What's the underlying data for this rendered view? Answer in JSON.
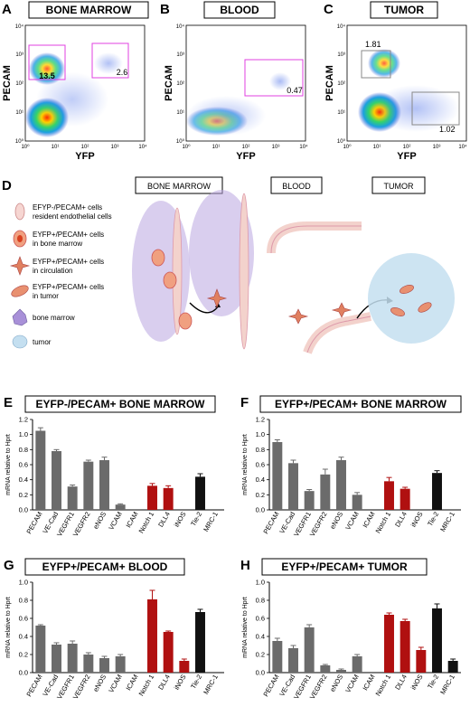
{
  "flow": [
    {
      "letter": "A",
      "title": "BONE MARROW",
      "ylabel": "PECAM",
      "xlabel": "YFP",
      "ticks": [
        "10⁰",
        "10¹",
        "10²",
        "10³",
        "10⁴"
      ],
      "gates": [
        {
          "label": "13.5",
          "color": "#e040e0"
        },
        {
          "label": "2.6",
          "color": "#e040e0"
        }
      ]
    },
    {
      "letter": "B",
      "title": "BLOOD",
      "ylabel": "PECAM",
      "xlabel": "YFP",
      "ticks": [
        "10⁰",
        "10¹",
        "10²",
        "10³",
        "10⁴"
      ],
      "gates": [
        {
          "label": "0.47",
          "color": "#e040e0"
        }
      ]
    },
    {
      "letter": "C",
      "title": "TUMOR",
      "ylabel": "PECAM",
      "xlabel": "YFP",
      "ticks": [
        "10⁰",
        "10¹",
        "10²",
        "10³",
        "10⁴"
      ],
      "gates": [
        {
          "label": "1.81",
          "color": "#888888"
        },
        {
          "label": "1.02",
          "color": "#888888"
        }
      ]
    }
  ],
  "scheme": {
    "letter": "D",
    "headers": [
      "BONE MARROW",
      "BLOOD",
      "TUMOR"
    ],
    "legend": [
      {
        "text1": "EFYP-/PECAM+ cells",
        "text2": "resident endothelial cells",
        "icon": "endothelial-cell-icon"
      },
      {
        "text1": "EYFP+/PECAM+ cells",
        "text2": "in bone marrow",
        "icon": "bm-yfp-cell-icon"
      },
      {
        "text1": "EYFP+/PECAM+ cells",
        "text2": "in circulation",
        "icon": "circulating-cell-icon"
      },
      {
        "text1": "EYFP+/PECAM+ cells",
        "text2": "in tumor",
        "icon": "tumor-yfp-cell-icon"
      },
      {
        "text1": "bone marrow",
        "text2": "",
        "icon": "bone-marrow-cell-icon"
      },
      {
        "text1": "tumor",
        "text2": "",
        "icon": "tumor-cell-icon"
      }
    ]
  },
  "colors": {
    "gray": "#6b6b6b",
    "red": "#b01010",
    "black": "#111111"
  },
  "chart_data": [
    {
      "panel": "E",
      "type": "bar",
      "title": "EYFP-/PECAM+ BONE MARROW",
      "ylabel": "mRNA relative to Hprt",
      "ylim": [
        0,
        1.2
      ],
      "yticks": [
        "0.0",
        "0.2",
        "0.4",
        "0.6",
        "0.8",
        "1.0",
        "1.2"
      ],
      "categories": [
        "PECAM",
        "VE-Cad",
        "VEGFR1",
        "VEGFR2",
        "eNOS",
        "VCAM",
        "ICAM",
        "Notch 1",
        "DLL4",
        "iNOS",
        "Tie-2",
        "MRC-1"
      ],
      "values": [
        1.05,
        0.78,
        0.31,
        0.64,
        0.66,
        0.07,
        0.01,
        0.32,
        0.29,
        0.0,
        0.44,
        0.0
      ],
      "errors": [
        0.04,
        0.02,
        0.02,
        0.02,
        0.04,
        0.01,
        0.0,
        0.03,
        0.03,
        0.0,
        0.04,
        0.0
      ],
      "bar_colors": [
        "gray",
        "gray",
        "gray",
        "gray",
        "gray",
        "gray",
        "gray",
        "red",
        "red",
        "red",
        "black",
        "black"
      ]
    },
    {
      "panel": "F",
      "type": "bar",
      "title": "EYFP+/PECAM+ BONE MARROW",
      "ylabel": "mRNA relative to Hprt",
      "ylim": [
        0,
        1.2
      ],
      "yticks": [
        "0.0",
        "0.2",
        "0.4",
        "0.6",
        "0.8",
        "1.0",
        "1.2"
      ],
      "categories": [
        "PECAM",
        "VE-Cad",
        "VEGFR1",
        "VEGFR2",
        "eNOS",
        "VCAM",
        "ICAM",
        "Notch 1",
        "DLL4",
        "iNOS",
        "Tie-2",
        "MRC-1"
      ],
      "values": [
        0.9,
        0.62,
        0.25,
        0.47,
        0.66,
        0.2,
        0.0,
        0.38,
        0.28,
        0.0,
        0.49,
        0.0
      ],
      "errors": [
        0.03,
        0.04,
        0.02,
        0.07,
        0.04,
        0.03,
        0.0,
        0.05,
        0.02,
        0.0,
        0.03,
        0.0
      ],
      "bar_colors": [
        "gray",
        "gray",
        "gray",
        "gray",
        "gray",
        "gray",
        "gray",
        "red",
        "red",
        "red",
        "black",
        "black"
      ]
    },
    {
      "panel": "G",
      "type": "bar",
      "title": "EYFP+/PECAM+ BLOOD",
      "ylabel": "mRNA relative to Hprt",
      "ylim": [
        0,
        1.0
      ],
      "yticks": [
        "0.0",
        "0.2",
        "0.4",
        "0.6",
        "0.8",
        "1.0"
      ],
      "categories": [
        "PECAM",
        "VE-Cad",
        "VEGFR1",
        "VEGFR2",
        "eNOS",
        "VCAM",
        "ICAM",
        "Notch 1",
        "DLL4",
        "iNOS",
        "Tie-2",
        "MRC-1"
      ],
      "values": [
        0.52,
        0.31,
        0.32,
        0.2,
        0.16,
        0.18,
        0.0,
        0.81,
        0.45,
        0.13,
        0.67,
        0.0
      ],
      "errors": [
        0.01,
        0.02,
        0.03,
        0.02,
        0.02,
        0.02,
        0.0,
        0.1,
        0.01,
        0.02,
        0.03,
        0.0
      ],
      "bar_colors": [
        "gray",
        "gray",
        "gray",
        "gray",
        "gray",
        "gray",
        "gray",
        "red",
        "red",
        "red",
        "black",
        "black"
      ]
    },
    {
      "panel": "H",
      "type": "bar",
      "title": "EYFP+/PECAM+ TUMOR",
      "ylabel": "mRNA relative to Hprt",
      "ylim": [
        0,
        1.0
      ],
      "yticks": [
        "0.0",
        "0.2",
        "0.4",
        "0.6",
        "0.8",
        "1.0"
      ],
      "categories": [
        "PECAM",
        "VE-Cad",
        "VEGFR1",
        "VEGFR2",
        "eNOS",
        "VCAM",
        "ICAM",
        "Notch 1",
        "DLL4",
        "iNOS",
        "Tie-2",
        "MRC-1"
      ],
      "values": [
        0.35,
        0.27,
        0.5,
        0.08,
        0.03,
        0.18,
        0.0,
        0.64,
        0.57,
        0.25,
        0.71,
        0.13
      ],
      "errors": [
        0.03,
        0.03,
        0.03,
        0.01,
        0.01,
        0.02,
        0.0,
        0.02,
        0.02,
        0.03,
        0.05,
        0.02
      ],
      "bar_colors": [
        "gray",
        "gray",
        "gray",
        "gray",
        "gray",
        "gray",
        "gray",
        "red",
        "red",
        "red",
        "black",
        "black"
      ]
    }
  ]
}
